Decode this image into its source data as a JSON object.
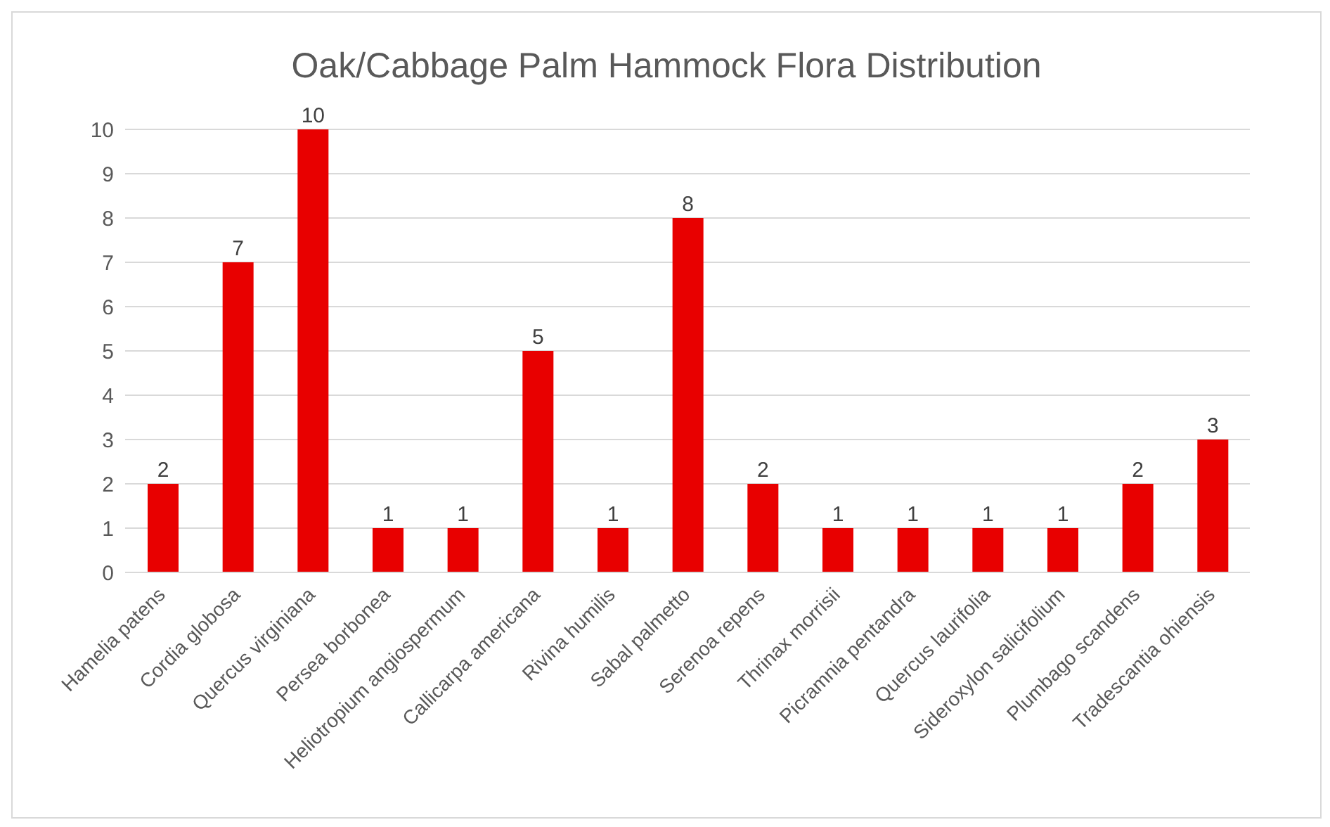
{
  "chart_data": {
    "type": "bar",
    "title": "Oak/Cabbage Palm Hammock Flora Distribution",
    "categories": [
      "Hamelia patens",
      "Cordia globosa",
      "Quercus virginiana",
      "Persea borbonea",
      "Heliotropium angiospermum",
      "Callicarpa americana",
      "Rivina humilis",
      "Sabal palmetto",
      "Serenoa repens",
      "Thrinax morrisii",
      "Picramnia pentandra",
      "Quercus laurifolia",
      "Sideroxylon salicifolium",
      "Plumbago scandens",
      "Tradescantia ohiensis"
    ],
    "values": [
      2,
      7,
      10,
      1,
      1,
      5,
      1,
      8,
      2,
      1,
      1,
      1,
      1,
      2,
      3
    ],
    "color": "#e80000",
    "ylim": [
      0,
      10
    ],
    "yticks": [
      0,
      1,
      2,
      3,
      4,
      5,
      6,
      7,
      8,
      9,
      10
    ],
    "grid": "y",
    "data_labels": true
  }
}
